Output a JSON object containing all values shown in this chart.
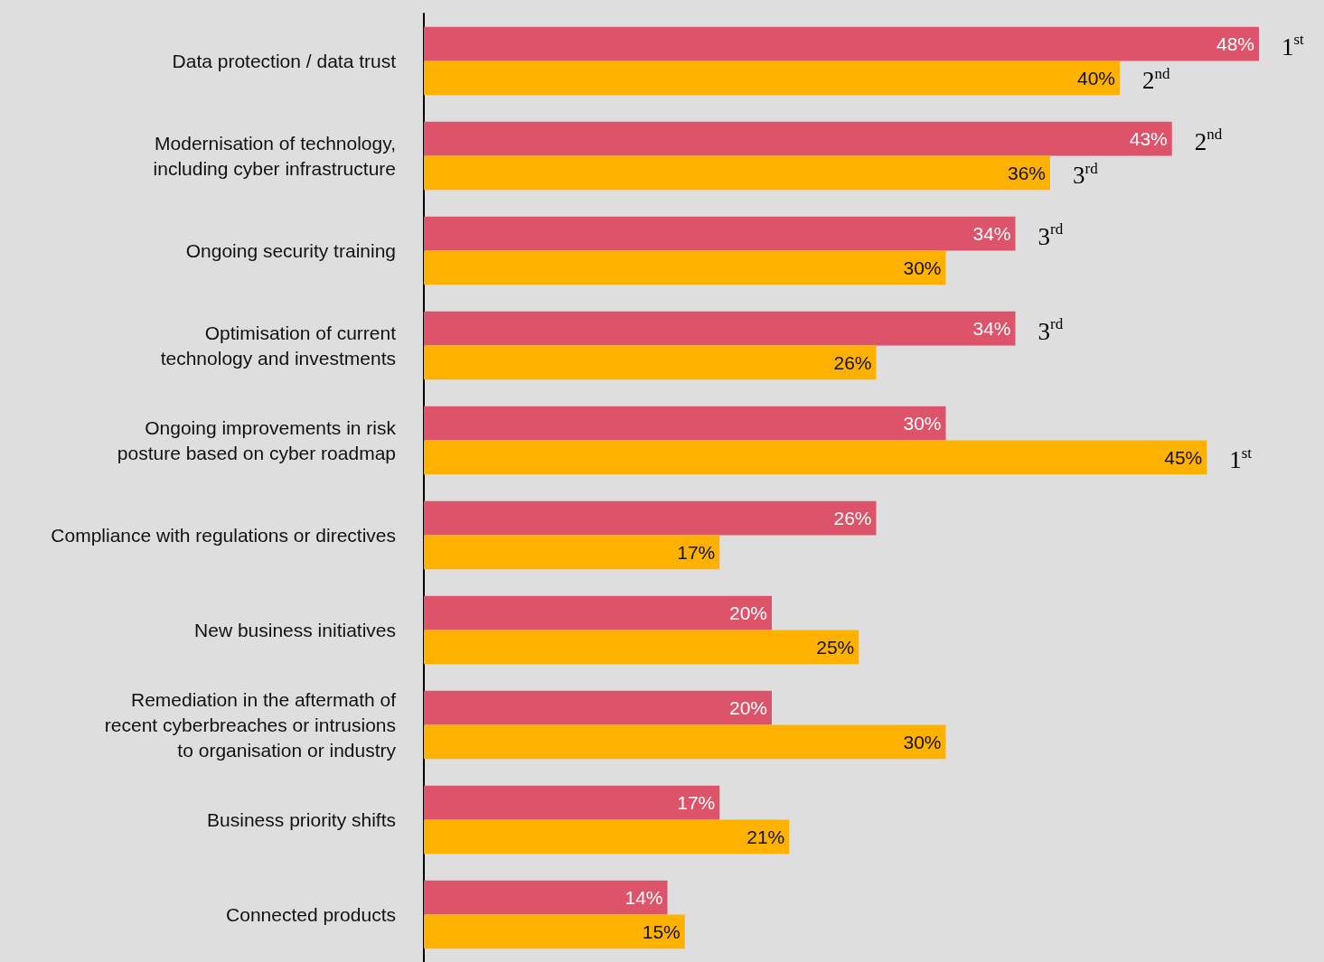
{
  "chart_data": {
    "type": "bar",
    "orientation": "horizontal",
    "categories": [
      "Data protection / data trust",
      "Modernisation of technology,\nincluding cyber infrastructure",
      "Ongoing security training",
      "Optimisation of current\ntechnology and investments",
      "Ongoing improvements in risk\nposture based on cyber roadmap",
      "Compliance with regulations or directives",
      "New business initiatives",
      "Remediation in the aftermath of\nrecent cyberbreaches or intrusions\nto organisation or industry",
      "Business priority shifts",
      "Connected products"
    ],
    "series": [
      {
        "color": "#dd5369",
        "values": [
          48,
          43,
          34,
          34,
          30,
          26,
          20,
          20,
          17,
          14
        ],
        "value_labels": [
          "48%",
          "43%",
          "34%",
          "34%",
          "30%",
          "26%",
          "20%",
          "20%",
          "17%",
          "14%"
        ]
      },
      {
        "color": "#ffb100",
        "values": [
          40,
          36,
          30,
          26,
          45,
          17,
          25,
          30,
          21,
          15
        ],
        "value_labels": [
          "40%",
          "36%",
          "30%",
          "26%",
          "45%",
          "17%",
          "25%",
          "30%",
          "21%",
          "15%"
        ]
      }
    ],
    "annotations": [
      {
        "text": "1$^{st}$",
        "x": 48,
        "y": "Data protection / data trust"
      },
      {
        "text": "2$^{nd}$",
        "x": 40,
        "y": "Data protection / data trust"
      },
      {
        "text": "2$^{nd}$",
        "x": 43,
        "y": "Modernisation of technology,\nincluding cyber infrastructure"
      },
      {
        "text": "3$^{rd}$",
        "x": 36,
        "y": "Modernisation of technology,\nincluding cyber infrastructure"
      },
      {
        "text": "3$^{rd}$",
        "x": 34,
        "y": "Ongoing security training"
      },
      {
        "text": "3$^{rd}$",
        "x": 34,
        "y": "Optimisation of current\ntechnology and investments"
      },
      {
        "text": "1$^{st}$",
        "x": 45,
        "y": "Ongoing improvements in risk\nposture based on cyber roadmap"
      }
    ]
  }
}
